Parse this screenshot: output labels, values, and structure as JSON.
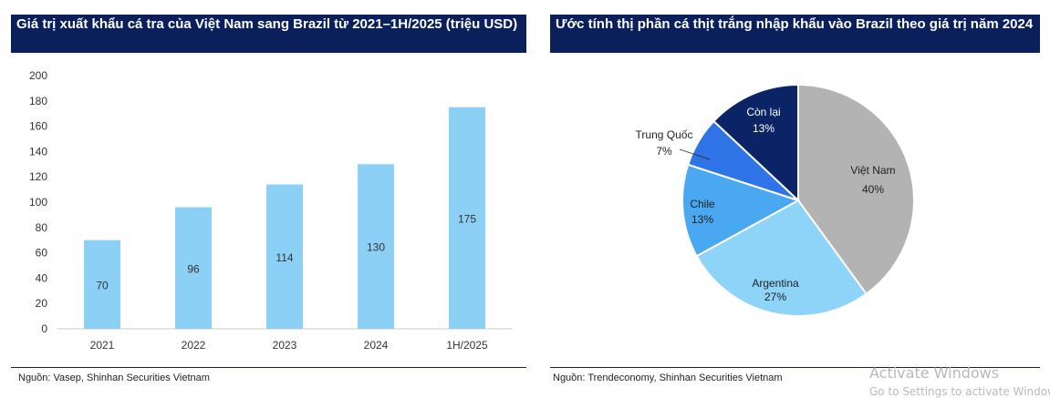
{
  "left_panel": {
    "title": "Giá trị xuất khẩu cá tra của Việt Nam sang Brazil từ 2021–1H/2025 (triệu USD)",
    "source": "Nguồn: Vasep,  Shinhan Securities Vietnam"
  },
  "right_panel": {
    "title": "Ước tính thị phần cá thịt trắng nhập khẩu vào Brazil theo giá trị năm 2024",
    "source": "Nguồn: Trendeconomy, Shinhan Securities Vietnam"
  },
  "watermark": {
    "line1": "Activate Windows",
    "line2": "Go to Settings to activate Windows."
  },
  "chart_data": [
    {
      "type": "bar",
      "title": "Giá trị xuất khẩu cá tra của Việt Nam sang Brazil từ 2021–1H/2025 (triệu USD)",
      "categories": [
        "2021",
        "2022",
        "2023",
        "2024",
        "1H/2025"
      ],
      "values": [
        70,
        96,
        114,
        130,
        175
      ],
      "ylim": [
        0,
        200
      ],
      "yticks": [
        0,
        20,
        40,
        60,
        80,
        100,
        120,
        140,
        160,
        180,
        200
      ],
      "xlabel": "",
      "ylabel": "",
      "bar_color": "#8dd0f5"
    },
    {
      "type": "pie",
      "title": "Ước tính thị phần cá thịt trắng nhập khẩu vào Brazil theo giá trị năm 2024",
      "slices": [
        {
          "label": "Việt Nam",
          "value": 40,
          "pct_label": "40%",
          "color": "#b3b3b3",
          "text_color": "#222222"
        },
        {
          "label": "Argentina",
          "value": 27,
          "pct_label": "27%",
          "color": "#8ed3f8",
          "text_color": "#222222"
        },
        {
          "label": "Chile",
          "value": 13,
          "pct_label": "13%",
          "color": "#4aa8f0",
          "text_color": "#222222"
        },
        {
          "label": "Trung Quốc",
          "value": 7,
          "pct_label": "7%",
          "color": "#2f74e6",
          "text_color": "#222222"
        },
        {
          "label": "Còn lại",
          "value": 13,
          "pct_label": "13%",
          "color": "#0b2466",
          "text_color": "#ffffff"
        }
      ]
    }
  ]
}
